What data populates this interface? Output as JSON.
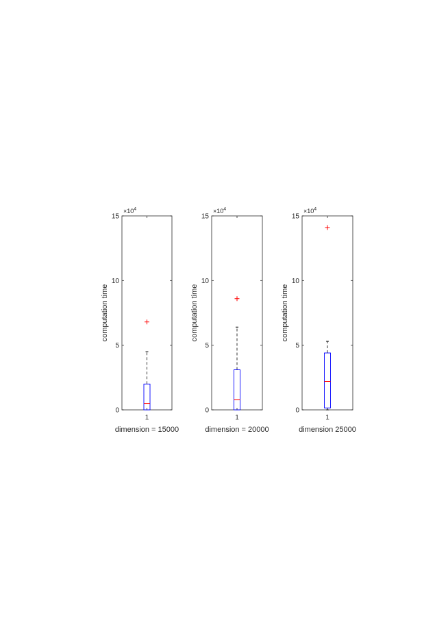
{
  "figure": {
    "colors": {
      "box": "#0000ff",
      "median": "#ff0000",
      "whisker": "#000000",
      "outlier": "#ff0000",
      "axes": "#262626"
    }
  },
  "chart_data": [
    {
      "type": "box",
      "xlabel": "dimension = 15000",
      "ylabel": "computation time",
      "categories": [
        "1"
      ],
      "ylim": [
        0,
        150000
      ],
      "y_ticks": [
        0,
        50000,
        100000,
        150000
      ],
      "y_tick_labels": [
        "0",
        "5",
        "10",
        "15"
      ],
      "y_exponent_label": "×10^4",
      "grid": false,
      "boxes": [
        {
          "category": "1",
          "whisker_low": 0,
          "q1": 0,
          "median": 5000,
          "q3": 20000,
          "whisker_high": 45000,
          "outliers": [
            68000
          ]
        }
      ]
    },
    {
      "type": "box",
      "xlabel": "dimension = 20000",
      "ylabel": "computation time",
      "categories": [
        "1"
      ],
      "ylim": [
        0,
        150000
      ],
      "y_ticks": [
        0,
        50000,
        100000,
        150000
      ],
      "y_tick_labels": [
        "0",
        "5",
        "10",
        "15"
      ],
      "y_exponent_label": "×10^4",
      "grid": false,
      "boxes": [
        {
          "category": "1",
          "whisker_low": 0,
          "q1": 0,
          "median": 8000,
          "q3": 31000,
          "whisker_high": 64000,
          "outliers": [
            86000
          ]
        }
      ]
    },
    {
      "type": "box",
      "xlabel": "dimension 25000",
      "ylabel": "computation time",
      "categories": [
        "1"
      ],
      "ylim": [
        0,
        150000
      ],
      "y_ticks": [
        0,
        50000,
        100000,
        150000
      ],
      "y_tick_labels": [
        "0",
        "5",
        "10",
        "15"
      ],
      "y_exponent_label": "×10^4",
      "grid": false,
      "boxes": [
        {
          "category": "1",
          "whisker_low": 0,
          "q1": 1500,
          "median": 22000,
          "q3": 44000,
          "whisker_high": 53000,
          "outliers": [
            141000
          ]
        }
      ]
    }
  ]
}
